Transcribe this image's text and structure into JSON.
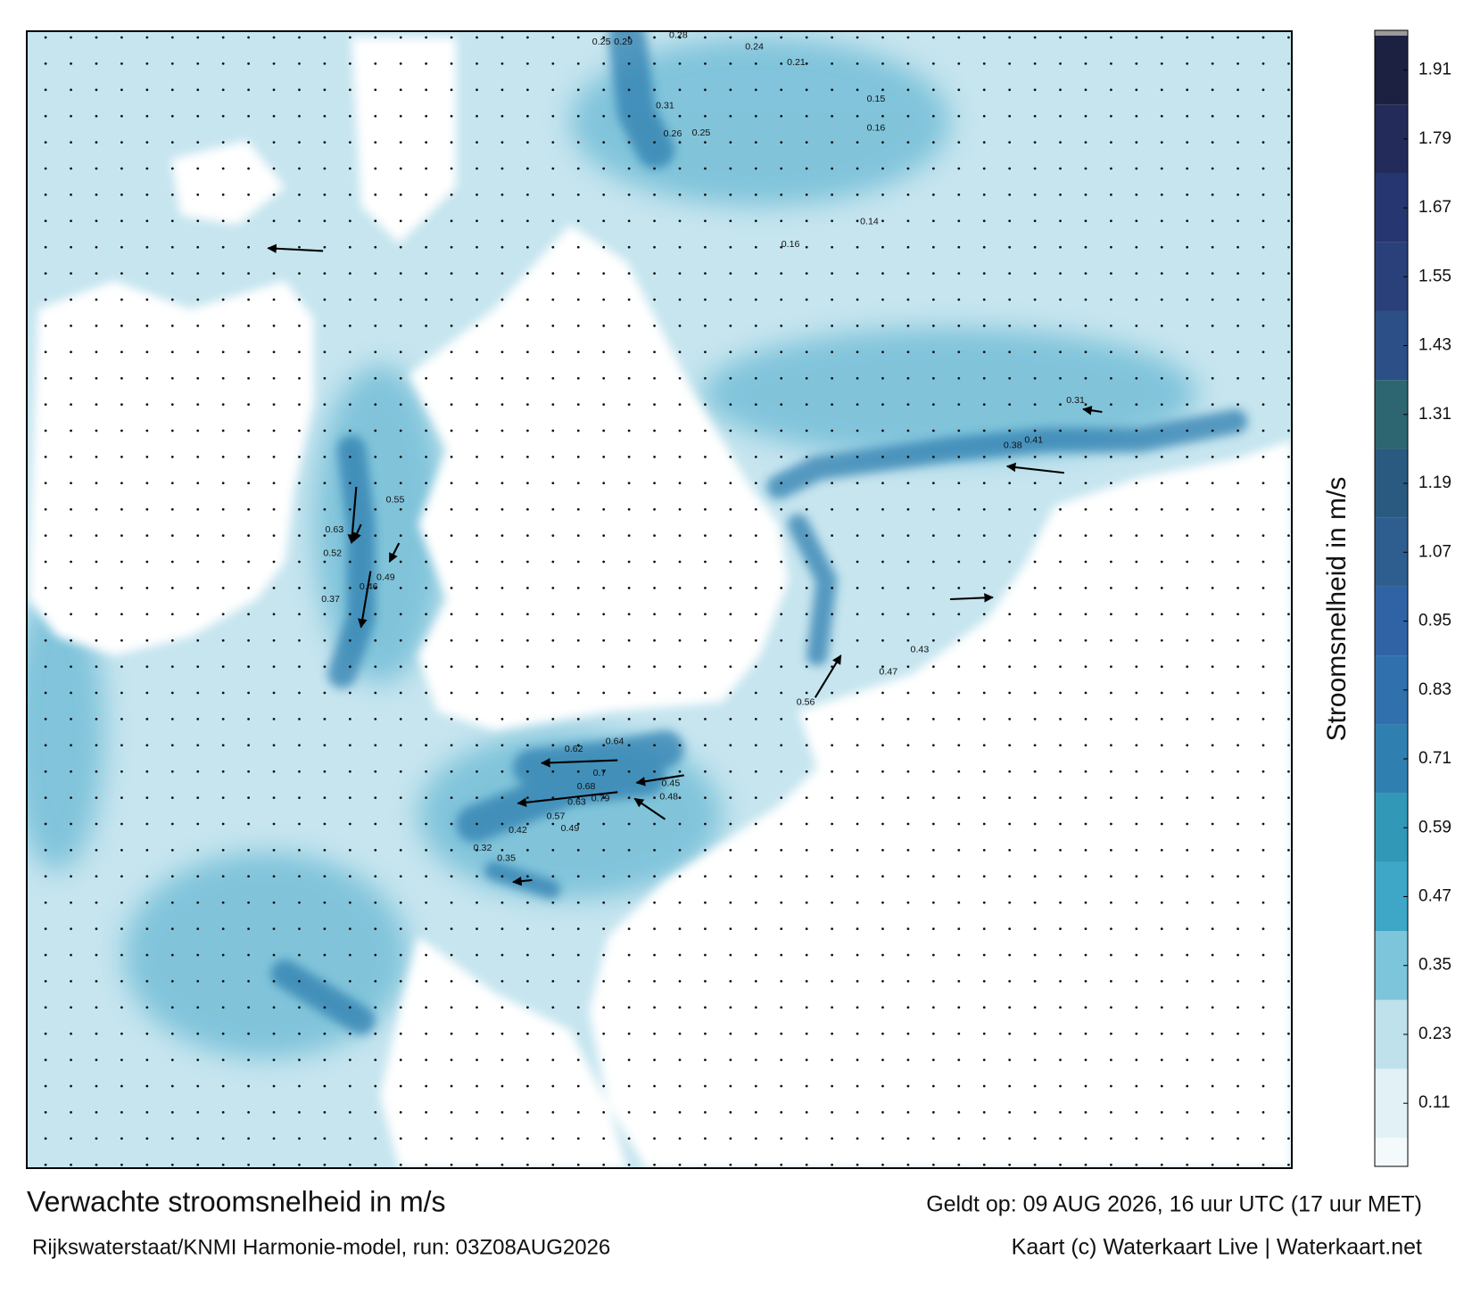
{
  "chart_data": {
    "type": "colormap",
    "title": "Verwachte stroomsnelheid in m/s",
    "subtitle": "Rijkswaterstaat/KNMI Harmonie-model, run: 03Z08AUG2026",
    "valid_time": "Geldt op: 09 AUG 2026, 16 uur UTC (17 uur MET)",
    "credit": "Kaart (c) Waterkaart Live | Waterkaart.net",
    "colorbar_label": "Stroomsnelheid in m/s",
    "ylim": [
      0,
      1.97
    ],
    "yticks": [
      0.11,
      0.23,
      0.35,
      0.47,
      0.59,
      0.71,
      0.83,
      0.95,
      1.07,
      1.19,
      1.31,
      1.43,
      1.55,
      1.67,
      1.79,
      1.91
    ],
    "colors": [
      "#e2f1f6",
      "#bfe1ec",
      "#7cc5da",
      "#3ea6c6",
      "#3198b8",
      "#2f80b0",
      "#2f70ad",
      "#2f63a6",
      "#2e5e8f",
      "#2b5a80",
      "#2d6670",
      "#2b4f86",
      "#2a407a",
      "#263670",
      "#232b5a",
      "#1c2141"
    ],
    "current_labels": [
      0.79,
      0.64,
      0.62,
      0.7,
      0.68,
      0.63,
      0.57,
      0.49,
      0.42,
      0.35,
      0.32,
      0.45,
      0.48,
      0.56,
      0.47,
      0.43,
      0.41,
      0.38,
      0.31,
      0.55,
      0.49,
      0.46,
      0.37,
      0.52,
      0.63,
      0.31,
      0.26,
      0.25,
      0.29,
      0.25,
      0.28,
      0.24,
      0.21,
      0.15,
      0.16,
      0.14,
      0.16
    ]
  }
}
